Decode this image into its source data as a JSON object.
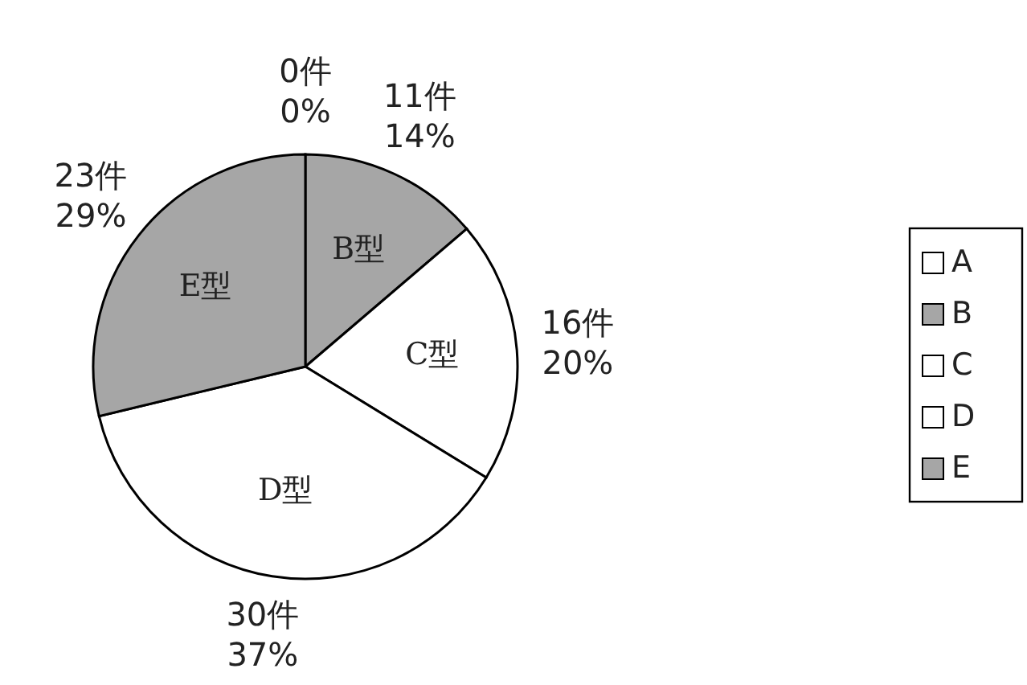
{
  "chart_data": {
    "type": "pie",
    "categories": [
      "A",
      "B",
      "C",
      "D",
      "E"
    ],
    "values": [
      0,
      11,
      16,
      30,
      23
    ],
    "colors": [
      "#ffffff",
      "#a6a6a6",
      "#ffffff",
      "#ffffff",
      "#a6a6a6"
    ],
    "value_labels": [
      "0件\n0%",
      "11件\n14%",
      "16件\n20%",
      "30件\n37%",
      "23件\n29%"
    ],
    "annotations": [
      {
        "text": "B型",
        "x": "B"
      },
      {
        "text": "C型",
        "x": "C"
      },
      {
        "text": "D型",
        "x": "D"
      },
      {
        "text": "E型",
        "x": "E"
      }
    ],
    "legend": "right"
  }
}
